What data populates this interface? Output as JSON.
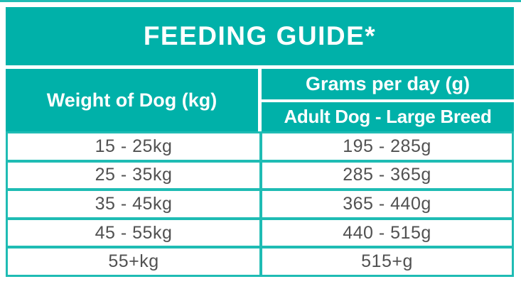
{
  "title": "FEEDING GUIDE*",
  "table": {
    "weight_header": "Weight of Dog (kg)",
    "grams_header": "Grams per day (g)",
    "grams_subheader": "Adult Dog - Large Breed",
    "rows": [
      {
        "weight": "15 - 25kg",
        "grams": "195 - 285g"
      },
      {
        "weight": "25 - 35kg",
        "grams": "285 - 365g"
      },
      {
        "weight": "35 - 45kg",
        "grams": "365 - 440g"
      },
      {
        "weight": "45 - 55kg",
        "grams": "440 - 515g"
      },
      {
        "weight": "55+kg",
        "grams": "515+g"
      }
    ]
  },
  "colors": {
    "teal_fill": "#00b1a9",
    "teal_border": "#1fbcb4",
    "text_gray": "#515151",
    "text_white": "#ffffff"
  },
  "chart_data": {
    "type": "table",
    "title": "FEEDING GUIDE*",
    "columns": [
      "Weight of Dog (kg)",
      "Grams per day (g) / Adult Dog - Large Breed"
    ],
    "rows": [
      [
        "15 - 25kg",
        "195 - 285g"
      ],
      [
        "25 - 35kg",
        "285 - 365g"
      ],
      [
        "35 - 45kg",
        "365 - 440g"
      ],
      [
        "45 - 55kg",
        "440 - 515g"
      ],
      [
        "55+kg",
        "515+g"
      ]
    ]
  }
}
